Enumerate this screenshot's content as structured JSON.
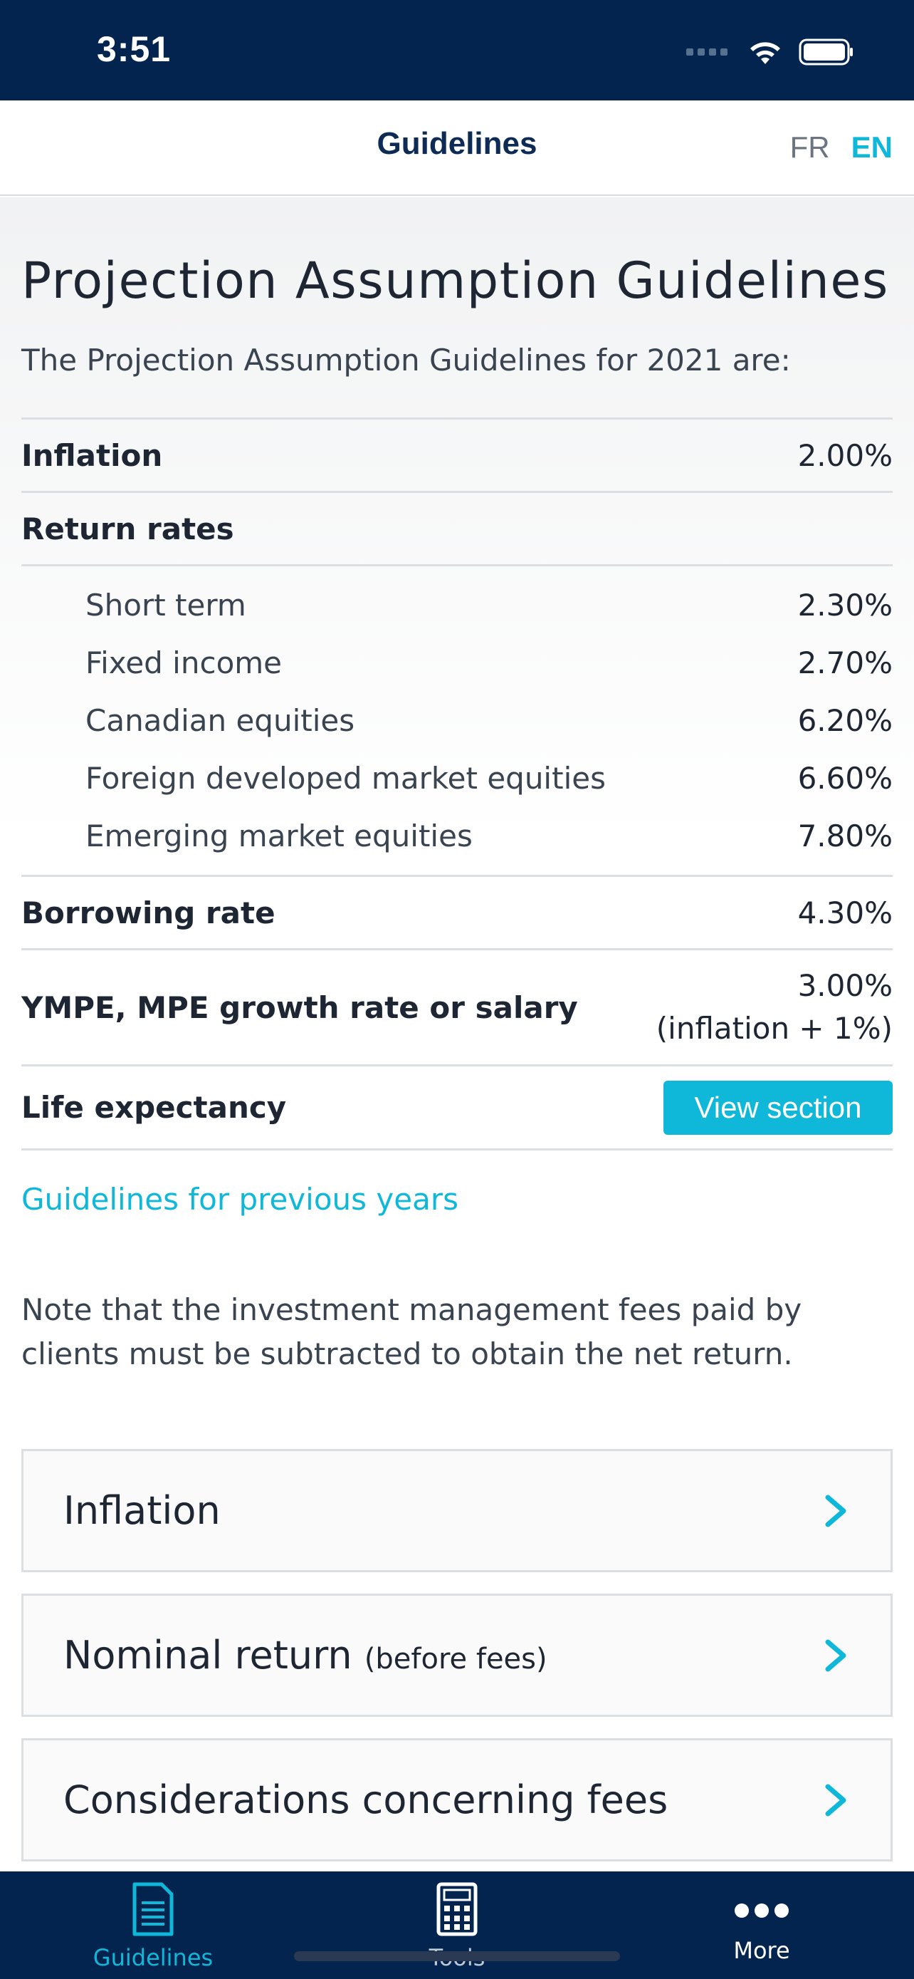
{
  "status_bar": {
    "time": "3:51"
  },
  "header": {
    "title": "Guidelines",
    "lang_fr": "FR",
    "lang_en": "EN"
  },
  "page": {
    "heading": "Projection Assumption Guidelines",
    "intro": "The Projection Assumption Guidelines for 2021 are:",
    "rows": {
      "inflation": {
        "label": "Inflation",
        "value": "2.00%"
      },
      "return_rates": {
        "label": "Return rates"
      },
      "sub_rates": [
        {
          "label": "Short term",
          "value": "2.30%"
        },
        {
          "label": "Fixed income",
          "value": "2.70%"
        },
        {
          "label": "Canadian equities",
          "value": "6.20%"
        },
        {
          "label": "Foreign developed market equities",
          "value": "6.60%"
        },
        {
          "label": "Emerging market equities",
          "value": "7.80%"
        }
      ],
      "borrowing": {
        "label": "Borrowing rate",
        "value": "4.30%"
      },
      "ympe": {
        "label": "YMPE, MPE growth rate or salary",
        "value_line1": "3.00%",
        "value_line2": "(inflation + 1%)"
      },
      "life": {
        "label": "Life expectancy",
        "button": "View section"
      }
    },
    "prev_link": "Guidelines for previous years",
    "note": "Note that the investment management fees paid by clients must be subtracted to obtain the net return."
  },
  "cards": [
    {
      "title": "Inflation",
      "sub": ""
    },
    {
      "title": "Nominal return",
      "sub": "(before fees)"
    },
    {
      "title": "Considerations concerning fees",
      "sub": ""
    }
  ],
  "tab_bar": {
    "guidelines": "Guidelines",
    "tools": "Tools",
    "more": "More"
  },
  "colors": {
    "navy": "#03244f",
    "accent": "#0fb8d8"
  },
  "icons": [
    "wifi-icon",
    "battery-icon",
    "chevron-right-icon",
    "document-list-icon",
    "calculator-icon",
    "more-dots-icon"
  ]
}
